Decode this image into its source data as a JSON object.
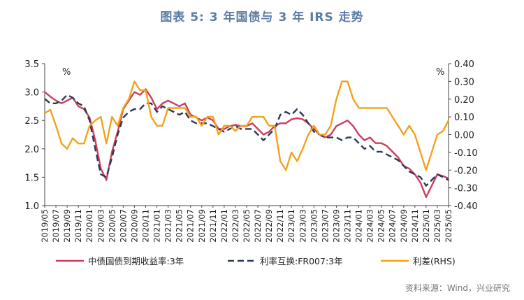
{
  "header": {
    "title": "图表 5:   3 年国债与 3 年 IRS 走势"
  },
  "footer": {
    "source": "资料来源：Wind，兴业研究"
  },
  "colors": {
    "red": "#cc3f5c",
    "navy": "#2b3a55",
    "orange": "#f4a11d",
    "title": "#5b7ba6"
  },
  "chart_data": {
    "type": "line",
    "title": "图表 5:   3 年国债与 3 年 IRS 走势",
    "left_unit": "%",
    "right_unit": "%",
    "left_axis": {
      "ylim": [
        1.0,
        3.5
      ],
      "ticks": [
        "1.0",
        "1.5",
        "2.0",
        "2.5",
        "3.0",
        "3.5"
      ]
    },
    "right_axis": {
      "ylim": [
        -0.4,
        0.4
      ],
      "ticks": [
        "-0.40",
        "-0.30",
        "-0.20",
        "-0.10",
        "0.00",
        "0.10",
        "0.20",
        "0.30",
        "0.40"
      ]
    },
    "x_ticks": [
      "2019/05",
      "2019/07",
      "2019/09",
      "2019/11",
      "2020/01",
      "2020/03",
      "2020/05",
      "2020/07",
      "2020/09",
      "2020/11",
      "2021/01",
      "2021/03",
      "2021/05",
      "2021/07",
      "2021/09",
      "2021/11",
      "2022/01",
      "2022/03",
      "2022/05",
      "2022/07",
      "2022/09",
      "2022/11",
      "2023/01",
      "2023/03",
      "2023/05",
      "2023/07",
      "2023/09",
      "2023/11",
      "2024/01",
      "2024/03",
      "2024/05",
      "2024/07",
      "2024/09",
      "2024/11",
      "2025/01",
      "2025/03",
      "2025/05"
    ],
    "grid": false,
    "legend_position": "bottom",
    "x": [
      "2019/05",
      "2019/06",
      "2019/07",
      "2019/08",
      "2019/09",
      "2019/10",
      "2019/11",
      "2019/12",
      "2020/01",
      "2020/02",
      "2020/03",
      "2020/04",
      "2020/05",
      "2020/06",
      "2020/07",
      "2020/08",
      "2020/09",
      "2020/10",
      "2020/11",
      "2020/12",
      "2021/01",
      "2021/02",
      "2021/03",
      "2021/04",
      "2021/05",
      "2021/06",
      "2021/07",
      "2021/08",
      "2021/09",
      "2021/10",
      "2021/11",
      "2021/12",
      "2022/01",
      "2022/02",
      "2022/03",
      "2022/04",
      "2022/05",
      "2022/06",
      "2022/07",
      "2022/08",
      "2022/09",
      "2022/10",
      "2022/11",
      "2022/12",
      "2023/01",
      "2023/02",
      "2023/03",
      "2023/04",
      "2023/05",
      "2023/06",
      "2023/07",
      "2023/08",
      "2023/09",
      "2023/10",
      "2023/11",
      "2023/12",
      "2024/01",
      "2024/02",
      "2024/03",
      "2024/04",
      "2024/05",
      "2024/06",
      "2024/07",
      "2024/08",
      "2024/09",
      "2024/10",
      "2024/11",
      "2024/12",
      "2025/01",
      "2025/02",
      "2025/03",
      "2025/04",
      "2025/05"
    ],
    "series": [
      {
        "name": "中债国债到期收益率:3年",
        "axis": "left",
        "color": "#cc3f5c",
        "dash": "solid",
        "values": [
          3.0,
          2.92,
          2.85,
          2.8,
          2.85,
          2.9,
          2.75,
          2.7,
          2.55,
          2.15,
          1.65,
          1.45,
          1.95,
          2.3,
          2.7,
          2.85,
          3.0,
          2.95,
          3.05,
          2.9,
          2.7,
          2.8,
          2.85,
          2.8,
          2.75,
          2.8,
          2.6,
          2.55,
          2.5,
          2.55,
          2.5,
          2.35,
          2.35,
          2.4,
          2.42,
          2.4,
          2.4,
          2.45,
          2.35,
          2.25,
          2.3,
          2.4,
          2.45,
          2.45,
          2.52,
          2.54,
          2.52,
          2.45,
          2.35,
          2.25,
          2.2,
          2.25,
          2.4,
          2.45,
          2.5,
          2.4,
          2.25,
          2.15,
          2.2,
          2.1,
          2.1,
          2.05,
          1.95,
          1.85,
          1.7,
          1.65,
          1.55,
          1.4,
          1.15,
          1.35,
          1.55,
          1.52,
          1.48
        ]
      },
      {
        "name": "利率互换:FR007:3年",
        "axis": "left",
        "color": "#2b3a55",
        "dash": "dashed",
        "values": [
          2.88,
          2.8,
          2.8,
          2.85,
          2.95,
          2.9,
          2.8,
          2.75,
          2.5,
          2.0,
          1.55,
          1.5,
          1.85,
          2.25,
          2.55,
          2.65,
          2.7,
          2.7,
          2.8,
          2.8,
          2.65,
          2.75,
          2.7,
          2.65,
          2.6,
          2.65,
          2.5,
          2.45,
          2.45,
          2.45,
          2.4,
          2.35,
          2.3,
          2.35,
          2.4,
          2.35,
          2.35,
          2.35,
          2.25,
          2.15,
          2.25,
          2.35,
          2.6,
          2.65,
          2.6,
          2.7,
          2.6,
          2.45,
          2.3,
          2.25,
          2.2,
          2.2,
          2.2,
          2.15,
          2.2,
          2.2,
          2.1,
          2.0,
          2.05,
          1.95,
          1.95,
          1.9,
          1.85,
          1.8,
          1.7,
          1.6,
          1.55,
          1.5,
          1.35,
          1.45,
          1.55,
          1.5,
          1.45
        ]
      },
      {
        "name": "利差(RHS)",
        "axis": "right",
        "color": "#f4a11d",
        "dash": "solid",
        "values": [
          0.12,
          0.14,
          0.05,
          -0.05,
          -0.08,
          -0.02,
          -0.05,
          -0.05,
          0.05,
          0.08,
          0.1,
          -0.05,
          0.1,
          0.05,
          0.15,
          0.2,
          0.3,
          0.25,
          0.25,
          0.1,
          0.05,
          0.05,
          0.15,
          0.15,
          0.15,
          0.15,
          0.1,
          0.1,
          0.05,
          0.1,
          0.1,
          0.0,
          0.05,
          0.05,
          0.02,
          0.05,
          0.05,
          0.1,
          0.1,
          0.1,
          0.05,
          0.05,
          -0.15,
          -0.2,
          -0.1,
          -0.15,
          -0.08,
          0.0,
          0.05,
          0.0,
          0.0,
          0.05,
          0.2,
          0.3,
          0.3,
          0.2,
          0.15,
          0.15,
          0.15,
          0.15,
          0.15,
          0.15,
          0.1,
          0.05,
          0.0,
          0.05,
          0.0,
          -0.1,
          -0.2,
          -0.1,
          0.0,
          0.02,
          0.08
        ]
      }
    ]
  }
}
